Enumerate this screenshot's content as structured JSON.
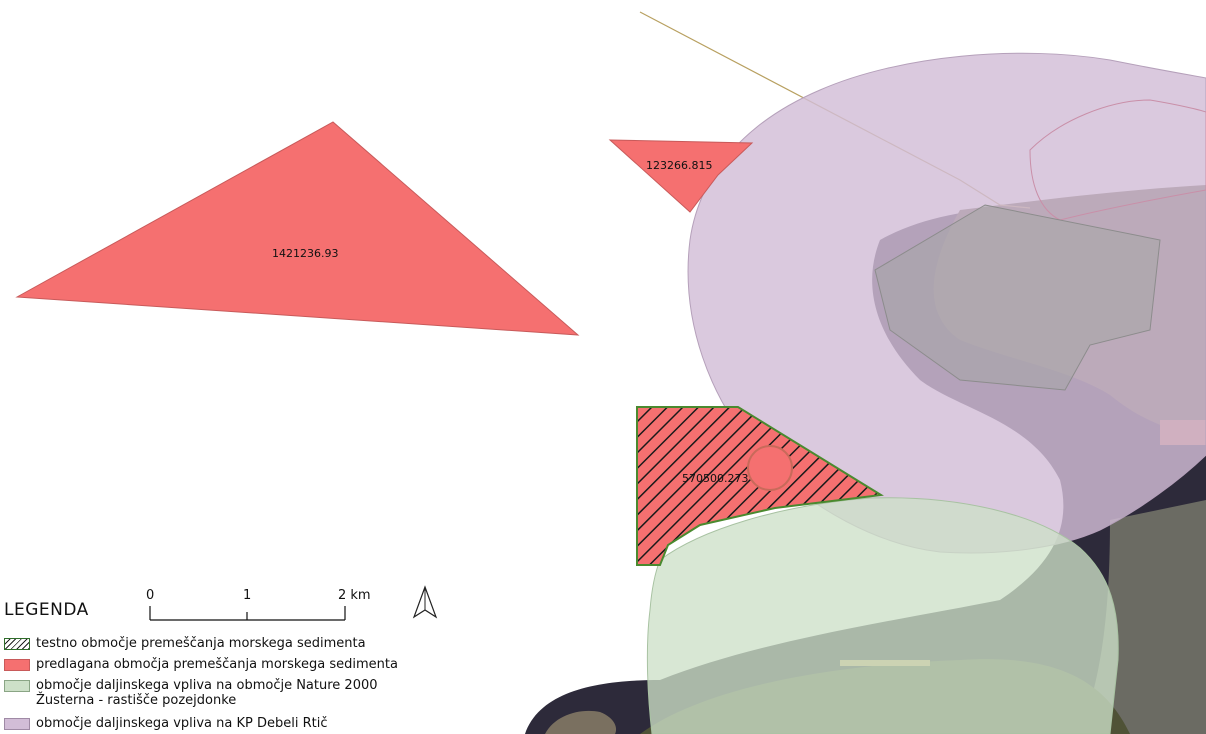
{
  "map": {
    "areas": [
      {
        "id": "area-large",
        "label": "1421236.93"
      },
      {
        "id": "area-small",
        "label": "123266.815"
      },
      {
        "id": "area-test",
        "label": "570500.273"
      }
    ],
    "colors": {
      "proposed_fill": "#f57070",
      "test_outline": "#4a8a2f",
      "natura_fill": "#cde0c8",
      "kp_fill": "#d2bdd7",
      "sea": "#2d2a3a",
      "land": "#5a5238"
    }
  },
  "scale_bar": {
    "ticks": [
      "0",
      "1",
      "2 km"
    ]
  },
  "north_arrow": {
    "icon": "north-arrow-icon"
  },
  "legend": {
    "title": "LEGENDA",
    "items": [
      {
        "key": "test",
        "line1": "testno območje premeščanja morskega sedimenta",
        "line2": ""
      },
      {
        "key": "proposed",
        "line1": "predlagana območja premeščanja morskega sedimenta",
        "line2": ""
      },
      {
        "key": "natura",
        "line1": "območje daljinskega vpliva na območje Nature 2000",
        "line2": "Žusterna - rastišče pozejdonke"
      },
      {
        "key": "kp",
        "line1": "območje daljinskega vpliva na KP Debeli Rtič",
        "line2": ""
      }
    ]
  }
}
